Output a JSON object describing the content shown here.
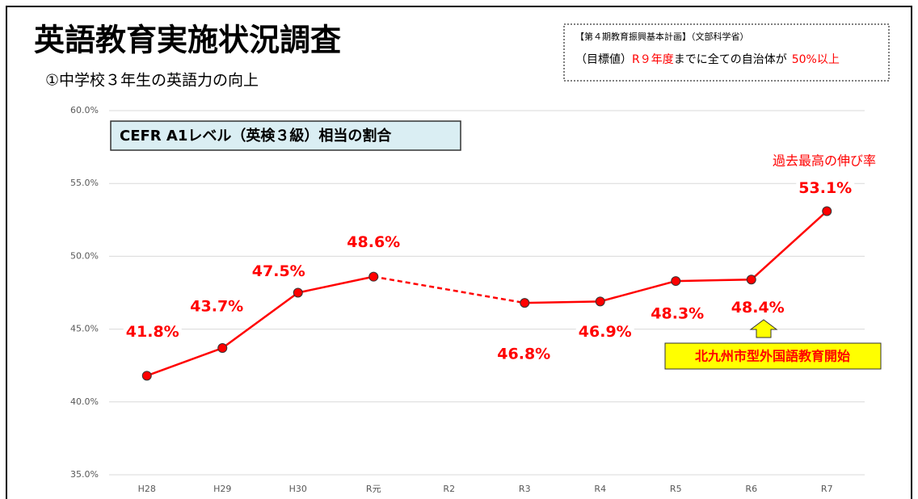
{
  "title": "英語教育実施状況調査",
  "subtitle": "①中学校３年生の英語力の向上",
  "target_box": {
    "line1": "【第４期教育振興基本計画】（文部科学省）",
    "line2": [
      "（目標値）",
      "R９年度",
      "までに全ての自治体が",
      "50%以上"
    ]
  },
  "chart_data": {
    "type": "line",
    "label_box": "CEFR A1レベル（英検３級）相当の割合",
    "categories": [
      "H28",
      "H29",
      "H30",
      "R元",
      "R2",
      "R3",
      "R4",
      "R5",
      "R6",
      "R7"
    ],
    "series": [
      {
        "color": "#ff0000",
        "values": [
          41.8,
          43.7,
          47.5,
          48.6,
          null,
          46.8,
          46.9,
          48.3,
          48.4,
          53.1
        ],
        "value_labels": [
          "41.8%",
          "43.7%",
          "47.5%",
          "48.6%",
          null,
          "46.8%",
          "46.9%",
          "48.3%",
          "48.4%",
          "53.1%"
        ]
      }
    ],
    "ylim": [
      35,
      60
    ],
    "yticks": [
      {
        "value": 35,
        "label": "35.0%"
      },
      {
        "value": 40,
        "label": "40.0%"
      },
      {
        "value": 45,
        "label": "45.0%"
      },
      {
        "value": 50,
        "label": "50.0%"
      },
      {
        "value": 55,
        "label": "55.0%"
      },
      {
        "value": 60,
        "label": "60.0%"
      }
    ],
    "grid": true,
    "annotations": [
      "過去最高の伸び率",
      "北九州市型外国語教育開始"
    ]
  }
}
